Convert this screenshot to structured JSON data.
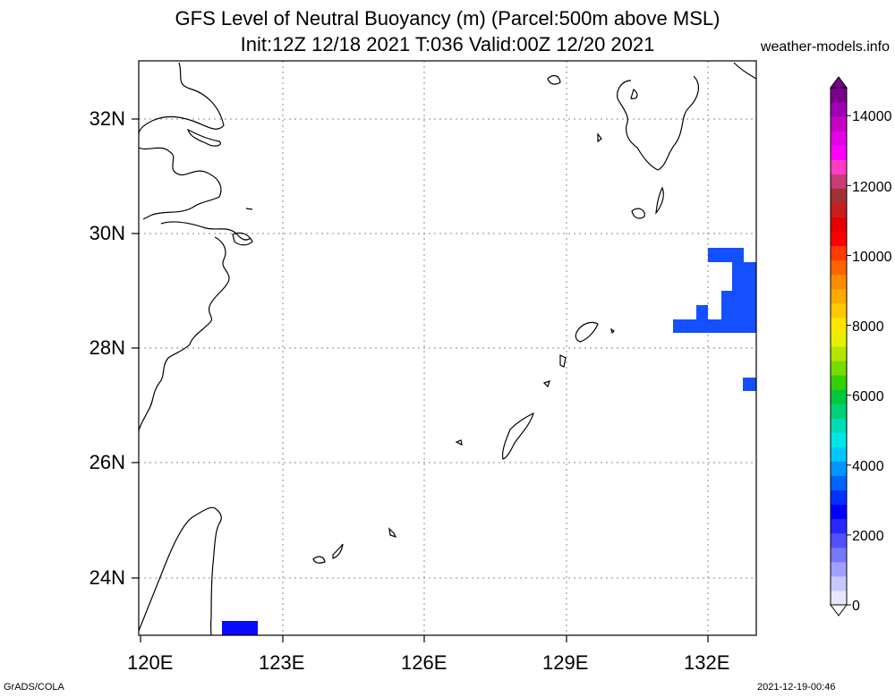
{
  "title": {
    "line1": "GFS Level of Neutral Buoyancy (m) (Parcel:500m above MSL)",
    "line2": "Init:12Z 12/18 2021 T:036 Valid:00Z 12/20 2021",
    "site": "weather-models.info"
  },
  "axes": {
    "x_ticks": [
      "120E",
      "123E",
      "126E",
      "129E",
      "132E"
    ],
    "y_ticks": [
      "32N",
      "30N",
      "28N",
      "26N",
      "24N"
    ]
  },
  "colorbar": {
    "labels": [
      "14000",
      "12000",
      "10000",
      "8000",
      "6000",
      "4000",
      "2000",
      "0"
    ],
    "colors": [
      "#e6e6ff",
      "#c8c8ff",
      "#a0a0ff",
      "#7878ff",
      "#5050ff",
      "#2828ff",
      "#0000ff",
      "#0032ff",
      "#0064ff",
      "#0096ff",
      "#00c8ff",
      "#00e6e6",
      "#00dcb4",
      "#00d278",
      "#00c83c",
      "#32d200",
      "#78dc00",
      "#b4e600",
      "#e6f000",
      "#ffe600",
      "#ffc800",
      "#ffaa00",
      "#ff8c00",
      "#ff6400",
      "#ff3c00",
      "#ff0000",
      "#e60000",
      "#c81e1e",
      "#a03232",
      "#c83c78",
      "#ff3cc8",
      "#ff00ff",
      "#e600e6",
      "#c800c8",
      "#a000b4",
      "#78008c"
    ]
  },
  "footer": {
    "left": "GrADS/COLA",
    "right": "2021-12-19-00:46"
  },
  "field_cells": [
    {
      "lon": 132.0,
      "lat": 29.55,
      "value": 1600
    },
    {
      "lon": 132.45,
      "lat": 29.3,
      "value": 1600
    },
    {
      "lon": 132.7,
      "lat": 28.9,
      "value": 1600
    },
    {
      "lon": 131.9,
      "lat": 28.4,
      "value": 1600
    },
    {
      "lon": 132.85,
      "lat": 27.3,
      "value": 1600
    },
    {
      "lon": 122.0,
      "lat": 23.1,
      "value": 1200
    }
  ]
}
